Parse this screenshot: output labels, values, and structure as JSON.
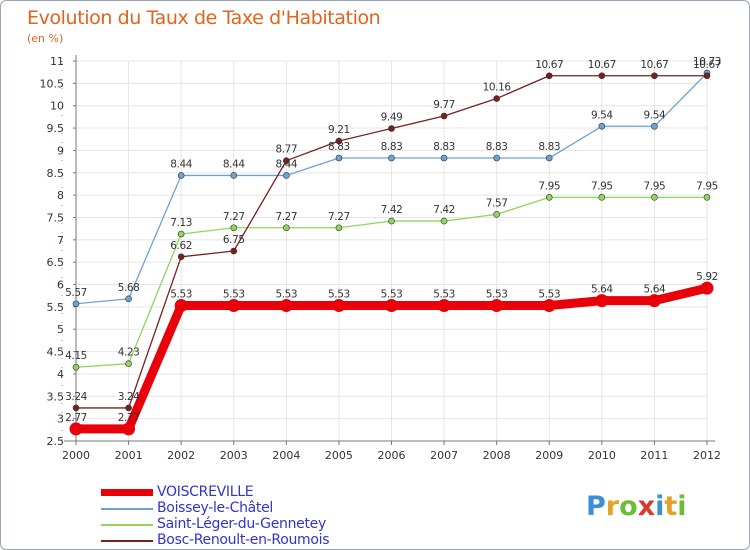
{
  "title": "Evolution du Taux de Taxe d'Habitation",
  "subtitle": "(en %)",
  "colors": {
    "title": "#e1631e",
    "legend_text": "#3333cc",
    "grid": "#e3e3e3",
    "axis": "#555555"
  },
  "logo": {
    "letters": [
      "P",
      "r",
      "o",
      "x",
      "i",
      "t",
      "i"
    ],
    "colors": [
      "#3a8fd6",
      "#e6a12a",
      "#6bbd3a",
      "#d93a2a",
      "#3a8fd6",
      "#e6a12a",
      "#6bbd3a"
    ]
  },
  "chart_data": {
    "type": "line",
    "title": "Evolution du Taux de Taxe d'Habitation",
    "subtitle": "(en %)",
    "x": [
      "2000",
      "2001",
      "2002",
      "2003",
      "2004",
      "2005",
      "2006",
      "2007",
      "2008",
      "2009",
      "2010",
      "2011",
      "2012"
    ],
    "ylim": [
      2.5,
      11
    ],
    "yticks": [
      2.5,
      3,
      3.5,
      4,
      4.5,
      5,
      5.5,
      6,
      6.5,
      7,
      7.5,
      8,
      8.5,
      9,
      9.5,
      10,
      10.5,
      11
    ],
    "ytick_labels": [
      "2.5",
      "3",
      "3.5",
      "4",
      "4.5",
      "5",
      "5.5",
      "6",
      "6.5",
      "7",
      "7.5",
      "8",
      "8.5",
      "9",
      "9.5",
      "10",
      "10.5",
      "11"
    ],
    "grid": true,
    "legend_position": "bottom-left",
    "series": [
      {
        "name": "VOISCREVILLE",
        "color": "#e8000b",
        "values": [
          2.77,
          2.77,
          5.53,
          5.53,
          5.53,
          5.53,
          5.53,
          5.53,
          5.53,
          5.53,
          5.64,
          5.64,
          5.92
        ],
        "labels": [
          "2.77",
          "2.77",
          "5.53",
          "5.53",
          "5.53",
          "5.53",
          "5.53",
          "5.53",
          "5.53",
          "5.53",
          "5.64",
          "5.64",
          "5.92"
        ]
      },
      {
        "name": "Boissey-le-Châtel",
        "color": "#6ba3d6",
        "values": [
          5.57,
          5.68,
          8.44,
          8.44,
          8.44,
          8.83,
          8.83,
          8.83,
          8.83,
          8.83,
          9.54,
          9.54,
          10.73
        ],
        "labels": [
          "5.57",
          "5.68",
          "8.44",
          "8.44",
          "8.44",
          "8.83",
          "8.83",
          "8.83",
          "8.83",
          "8.83",
          "9.54",
          "9.54",
          "10.73"
        ]
      },
      {
        "name": "Saint-Léger-du-Gennetey",
        "color": "#8fd65a",
        "values": [
          4.15,
          4.23,
          7.13,
          7.27,
          7.27,
          7.27,
          7.42,
          7.42,
          7.57,
          7.95,
          7.95,
          7.95,
          7.95
        ],
        "labels": [
          "4.15",
          "4.23",
          "7.13",
          "7.27",
          "7.27",
          "7.27",
          "7.42",
          "7.42",
          "7.57",
          "7.95",
          "7.95",
          "7.95",
          "7.95"
        ]
      },
      {
        "name": "Bosc-Renoult-en-Roumois",
        "color": "#7a1f1f",
        "values": [
          3.24,
          3.24,
          6.62,
          6.75,
          8.77,
          9.21,
          9.49,
          9.77,
          10.16,
          10.67,
          10.67,
          10.67,
          10.67
        ],
        "labels": [
          "3.24",
          "3.24",
          "6.62",
          "6.75",
          "8.77",
          "9.21",
          "9.49",
          "9.77",
          "10.16",
          "10.67",
          "10.67",
          "10.67",
          "10.67"
        ]
      }
    ]
  }
}
